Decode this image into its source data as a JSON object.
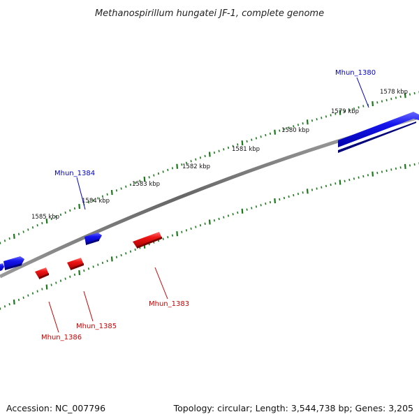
{
  "title": "Methanospirillum hungatei JF-1, complete genome",
  "footer": {
    "accession": "Accession: NC_007796",
    "summary": "Topology: circular; Length: 3,544,738 bp; Genes: 3,205"
  },
  "colors": {
    "forward_strand": "#0000dd",
    "reverse_strand": "#dd0000",
    "ticks": "#1a7a1a",
    "backbone": "#777777"
  },
  "scale": {
    "unit": "kbp",
    "labels": [
      "1578 kbp",
      "1579 kbp",
      "1580 kbp",
      "1581 kbp",
      "1582 kbp",
      "1583 kbp",
      "1584 kbp",
      "1585 kbp"
    ]
  },
  "genes": [
    {
      "id": "Mhun_1380",
      "strand": "forward",
      "label": "Mhun_1380"
    },
    {
      "id": "Mhun_1384",
      "strand": "forward",
      "label": "Mhun_1384"
    },
    {
      "id": "Mhun_1383",
      "strand": "reverse",
      "label": "Mhun_1383"
    },
    {
      "id": "Mhun_1385",
      "strand": "reverse",
      "label": "Mhun_1385"
    },
    {
      "id": "Mhun_1386",
      "strand": "reverse",
      "label": "Mhun_1386"
    }
  ]
}
